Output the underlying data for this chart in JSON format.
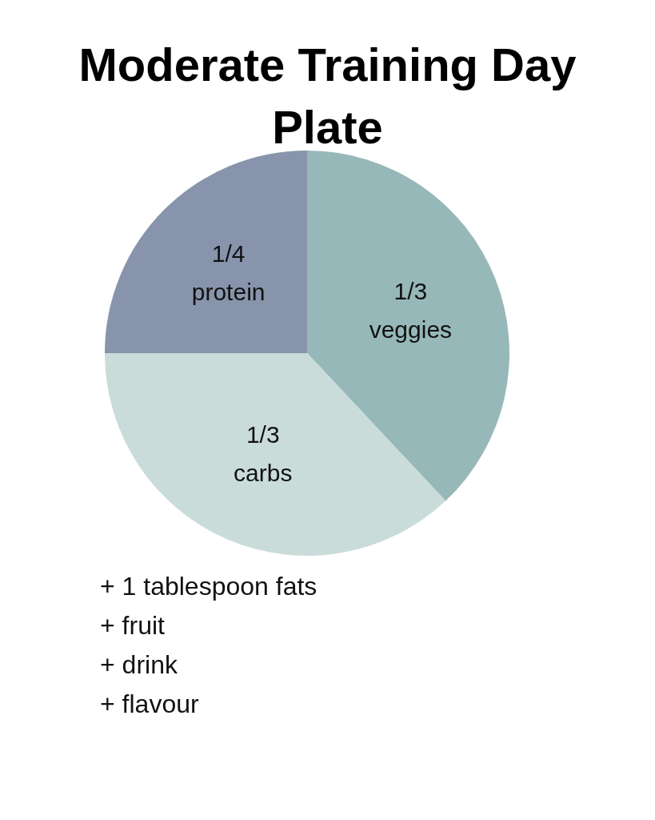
{
  "chart_data": {
    "type": "pie",
    "title": "Moderate Training Day Plate",
    "categories": [
      "1/3 veggies",
      "1/3 carbs",
      "1/4 protein"
    ],
    "values": [
      38,
      37,
      25
    ],
    "colors": [
      "#97b8b8",
      "#c9dcda",
      "#8794ab"
    ],
    "legend": false,
    "annotations": [
      "+ 1 tablespoon fats",
      "+ fruit",
      "+ drink",
      "+ flavour"
    ]
  }
}
